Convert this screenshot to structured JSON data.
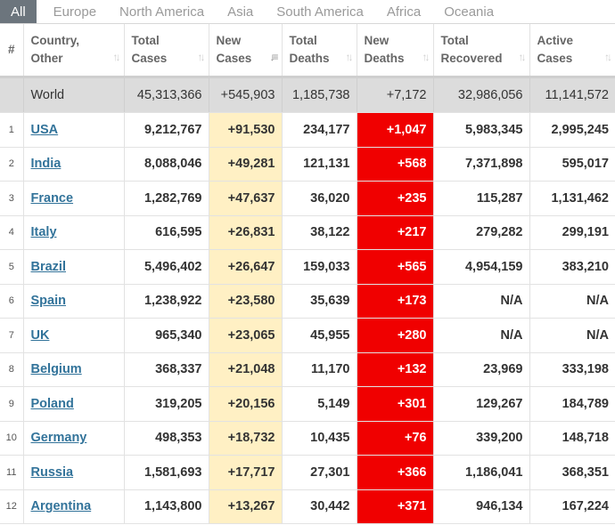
{
  "tabs": [
    "All",
    "Europe",
    "North America",
    "Asia",
    "South America",
    "Africa",
    "Oceania"
  ],
  "headers": {
    "idx": "#",
    "country": [
      "Country,",
      "Other"
    ],
    "total_cases": [
      "Total",
      "Cases"
    ],
    "new_cases": [
      "New",
      "Cases"
    ],
    "total_deaths": [
      "Total",
      "Deaths"
    ],
    "new_deaths": [
      "New",
      "Deaths"
    ],
    "total_recovered": [
      "Total",
      "Recovered"
    ],
    "active_cases": [
      "Active",
      "Cases"
    ]
  },
  "world": {
    "country": "World",
    "total_cases": "45,313,366",
    "new_cases": "+545,903",
    "total_deaths": "1,185,738",
    "new_deaths": "+7,172",
    "total_recovered": "32,986,056",
    "active_cases": "11,141,572"
  },
  "rows": [
    {
      "idx": "1",
      "country": "USA",
      "total_cases": "9,212,767",
      "new_cases": "+91,530",
      "total_deaths": "234,177",
      "new_deaths": "+1,047",
      "total_recovered": "5,983,345",
      "active_cases": "2,995,245"
    },
    {
      "idx": "2",
      "country": "India",
      "total_cases": "8,088,046",
      "new_cases": "+49,281",
      "total_deaths": "121,131",
      "new_deaths": "+568",
      "total_recovered": "7,371,898",
      "active_cases": "595,017"
    },
    {
      "idx": "3",
      "country": "France",
      "total_cases": "1,282,769",
      "new_cases": "+47,637",
      "total_deaths": "36,020",
      "new_deaths": "+235",
      "total_recovered": "115,287",
      "active_cases": "1,131,462"
    },
    {
      "idx": "4",
      "country": "Italy",
      "total_cases": "616,595",
      "new_cases": "+26,831",
      "total_deaths": "38,122",
      "new_deaths": "+217",
      "total_recovered": "279,282",
      "active_cases": "299,191"
    },
    {
      "idx": "5",
      "country": "Brazil",
      "total_cases": "5,496,402",
      "new_cases": "+26,647",
      "total_deaths": "159,033",
      "new_deaths": "+565",
      "total_recovered": "4,954,159",
      "active_cases": "383,210"
    },
    {
      "idx": "6",
      "country": "Spain",
      "total_cases": "1,238,922",
      "new_cases": "+23,580",
      "total_deaths": "35,639",
      "new_deaths": "+173",
      "total_recovered": "N/A",
      "active_cases": "N/A"
    },
    {
      "idx": "7",
      "country": "UK",
      "total_cases": "965,340",
      "new_cases": "+23,065",
      "total_deaths": "45,955",
      "new_deaths": "+280",
      "total_recovered": "N/A",
      "active_cases": "N/A"
    },
    {
      "idx": "8",
      "country": "Belgium",
      "total_cases": "368,337",
      "new_cases": "+21,048",
      "total_deaths": "11,170",
      "new_deaths": "+132",
      "total_recovered": "23,969",
      "active_cases": "333,198"
    },
    {
      "idx": "9",
      "country": "Poland",
      "total_cases": "319,205",
      "new_cases": "+20,156",
      "total_deaths": "5,149",
      "new_deaths": "+301",
      "total_recovered": "129,267",
      "active_cases": "184,789"
    },
    {
      "idx": "10",
      "country": "Germany",
      "total_cases": "498,353",
      "new_cases": "+18,732",
      "total_deaths": "10,435",
      "new_deaths": "+76",
      "total_recovered": "339,200",
      "active_cases": "148,718"
    },
    {
      "idx": "11",
      "country": "Russia",
      "total_cases": "1,581,693",
      "new_cases": "+17,717",
      "total_deaths": "27,301",
      "new_deaths": "+366",
      "total_recovered": "1,186,041",
      "active_cases": "368,351"
    },
    {
      "idx": "12",
      "country": "Argentina",
      "total_cases": "1,143,800",
      "new_cases": "+13,267",
      "total_deaths": "30,442",
      "new_deaths": "+371",
      "total_recovered": "946,134",
      "active_cases": "167,224"
    }
  ],
  "colors": {
    "active_tab": "#6c757d",
    "new_cases_bg": "#fff0c4",
    "new_deaths_bg": "#f00000",
    "world_row_bg": "#dcdcdc",
    "country_link": "#32739a"
  },
  "icons": {
    "sort": "sort-arrows-icon",
    "sort_active": "sort-desc-icon"
  }
}
